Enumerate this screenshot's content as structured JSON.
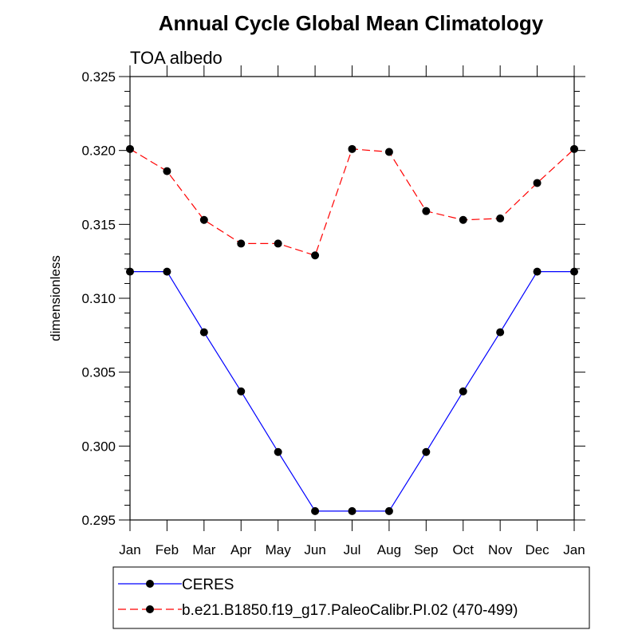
{
  "chart_data": {
    "type": "line",
    "title": "Annual Cycle Global Mean Climatology",
    "subtitle": "TOA albedo",
    "xlabel": "",
    "ylabel": "dimensionless",
    "categories": [
      "Jan",
      "Feb",
      "Mar",
      "Apr",
      "May",
      "Jun",
      "Jul",
      "Aug",
      "Sep",
      "Oct",
      "Nov",
      "Dec",
      "Jan"
    ],
    "ylim": [
      0.295,
      0.325
    ],
    "yticks": [
      "0.295",
      "0.300",
      "0.305",
      "0.310",
      "0.315",
      "0.320",
      "0.325"
    ],
    "grid": false,
    "legend_position": "bottom",
    "series": [
      {
        "name": "CERES",
        "color": "#0000ff",
        "dash": "solid",
        "values": [
          0.3118,
          0.3118,
          0.3077,
          0.3037,
          0.2996,
          0.2956,
          0.2956,
          0.2956,
          0.2996,
          0.3037,
          0.3077,
          0.3118,
          0.3118
        ]
      },
      {
        "name": "b.e21.B1850.f19_g17.PaleoCalibr.PI.02 (470-499)",
        "color": "#ff0000",
        "dash": "dashed",
        "values": [
          0.3201,
          0.3186,
          0.3153,
          0.3137,
          0.3137,
          0.3129,
          0.3201,
          0.3199,
          0.3159,
          0.3153,
          0.3154,
          0.3178,
          0.3201
        ]
      }
    ]
  }
}
